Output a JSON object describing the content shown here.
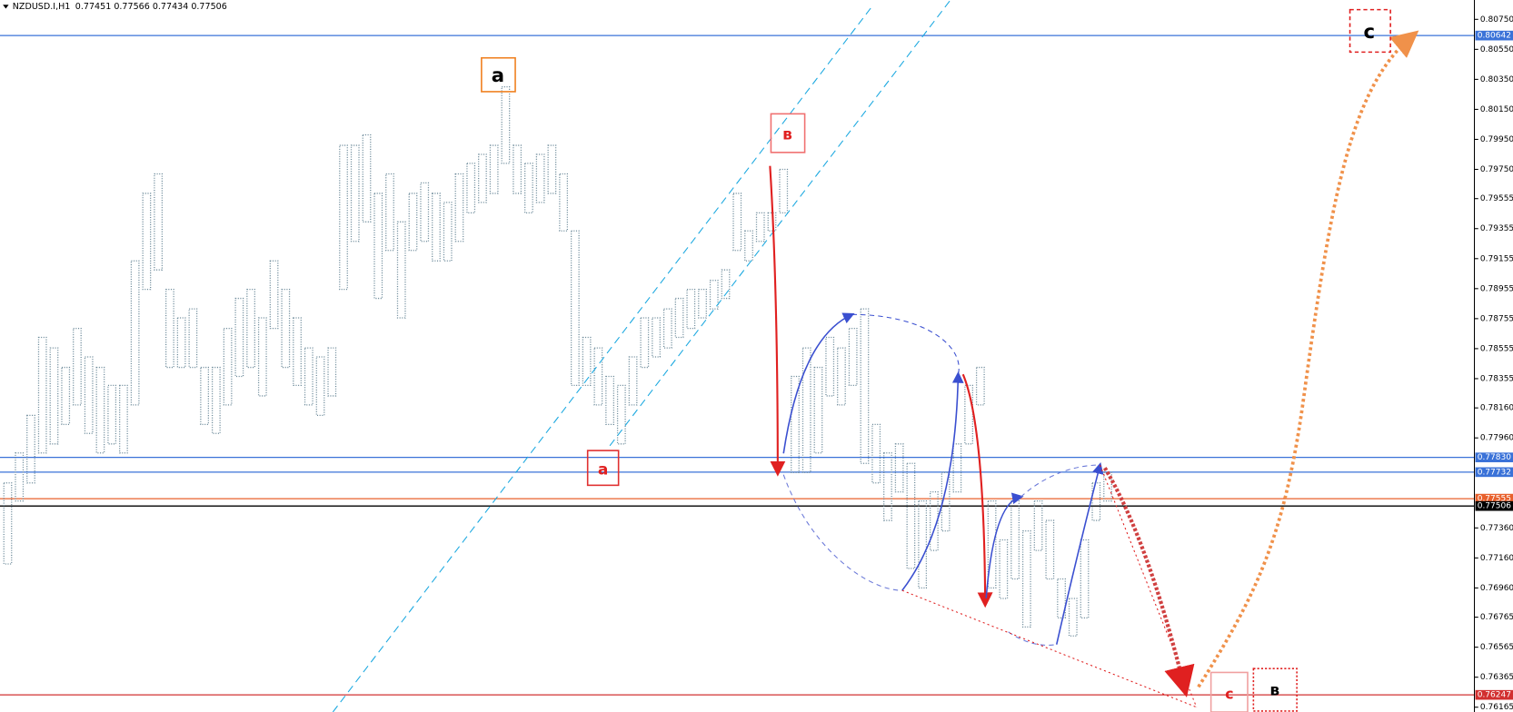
{
  "chart_data": {
    "type": "range-bar",
    "title": "NZDUSD.I,H1",
    "quote": "0.77451 0.77566 0.77434 0.77506",
    "color": "#6a8898",
    "ylim": [
      0.76133,
      0.80879
    ],
    "yticks": [
      {
        "value": 0.8075,
        "label": "0.80750"
      },
      {
        "value": 0.8055,
        "label": "0.80550"
      },
      {
        "value": 0.8035,
        "label": "0.80350"
      },
      {
        "value": 0.8015,
        "label": "0.80150"
      },
      {
        "value": 0.7995,
        "label": "0.79950"
      },
      {
        "value": 0.7975,
        "label": "0.79750"
      },
      0.79555,
      0.79355,
      0.79155,
      0.78955,
      0.78755,
      0.78555,
      0.78355,
      {
        "value": 0.7816,
        "label": "0.78160"
      },
      {
        "value": 0.7796,
        "label": "0.77960"
      },
      {
        "value": 0.7736,
        "label": "0.77360"
      },
      {
        "value": 0.7716,
        "label": "0.77160"
      },
      {
        "value": 0.7696,
        "label": "0.76960"
      },
      0.76765,
      0.76565,
      0.76365,
      0.76165
    ],
    "levels": [
      {
        "value": 0.80642,
        "label": "0.80642",
        "color": "#3a72d8"
      },
      {
        "value": 0.7783,
        "label": "0.77830",
        "color": "#3a72d8"
      },
      {
        "value": 0.77732,
        "label": "0.77732",
        "color": "#3a72d8"
      },
      {
        "value": 0.77555,
        "label": "0.77555",
        "color": "#e8602c"
      },
      {
        "value": 0.77506,
        "label": "0.77506",
        "color": "#000000"
      },
      {
        "value": 0.76247,
        "label": "0.76247",
        "color": "#d23030"
      }
    ],
    "high": [
      0.7766,
      0.7786,
      0.7811,
      0.7863,
      0.7856,
      0.7843,
      0.7869,
      0.785,
      0.7843,
      0.7831,
      0.7831,
      0.7914,
      0.7959,
      0.7972,
      0.7895,
      0.7876,
      0.7882,
      0.7843,
      0.7843,
      0.7869,
      0.7889,
      0.7895,
      0.7876,
      0.7914,
      0.7895,
      0.7876,
      0.7856,
      0.785,
      0.7856,
      0.7991,
      0.7991,
      0.7998,
      0.7959,
      0.7972,
      0.794,
      0.7959,
      0.7966,
      0.7959,
      0.7953,
      0.7972,
      0.7979,
      0.7985,
      0.7991,
      0.803,
      0.7991,
      0.7979,
      0.7985,
      0.7991,
      0.7972,
      0.7934,
      0.7863,
      0.7856,
      0.7837,
      0.7831,
      0.785,
      0.7876,
      0.7876,
      0.7882,
      0.7889,
      0.7895,
      0.7895,
      0.7901,
      0.7908,
      0.7959,
      0.7934,
      0.7946,
      0.7946,
      0.7975,
      0.7837,
      0.7856,
      0.7843,
      0.7863,
      0.7856,
      0.7869,
      0.7882,
      0.7805,
      0.7786,
      0.7792,
      0.7779,
      0.7754,
      0.776,
      0.7773,
      0.7792,
      0.7831,
      0.7843,
      0.7754,
      0.7728,
      0.7754,
      0.7734,
      0.7754,
      0.7741,
      0.7702,
      0.7689,
      0.7728,
      0.7766,
      0.7773
    ],
    "low": [
      0.7712,
      0.7754,
      0.7766,
      0.7786,
      0.7792,
      0.7805,
      0.7818,
      0.7799,
      0.7786,
      0.7792,
      0.7786,
      0.7818,
      0.7895,
      0.7908,
      0.7843,
      0.7843,
      0.7843,
      0.7805,
      0.7799,
      0.7818,
      0.7837,
      0.7843,
      0.7824,
      0.7869,
      0.7843,
      0.7831,
      0.7818,
      0.7811,
      0.7824,
      0.7895,
      0.7927,
      0.794,
      0.7889,
      0.7921,
      0.7876,
      0.7921,
      0.7927,
      0.7914,
      0.7914,
      0.7927,
      0.7946,
      0.7953,
      0.7959,
      0.7979,
      0.7959,
      0.7946,
      0.7953,
      0.7959,
      0.7934,
      0.7831,
      0.7831,
      0.7818,
      0.7805,
      0.7792,
      0.7818,
      0.7843,
      0.785,
      0.7856,
      0.7863,
      0.7869,
      0.7876,
      0.7882,
      0.7889,
      0.7921,
      0.7914,
      0.7927,
      0.7934,
      0.7946,
      0.7773,
      0.7773,
      0.7786,
      0.7824,
      0.7818,
      0.7831,
      0.7779,
      0.7766,
      0.7741,
      0.776,
      0.7709,
      0.7696,
      0.7721,
      0.7734,
      0.776,
      0.7792,
      0.7818,
      0.7696,
      0.7689,
      0.7702,
      0.767,
      0.7721,
      0.7702,
      0.7676,
      0.7664,
      0.7676,
      0.7741,
      0.7754
    ],
    "annotations": [
      "a",
      "в",
      "a",
      "c",
      "c",
      "в"
    ]
  }
}
